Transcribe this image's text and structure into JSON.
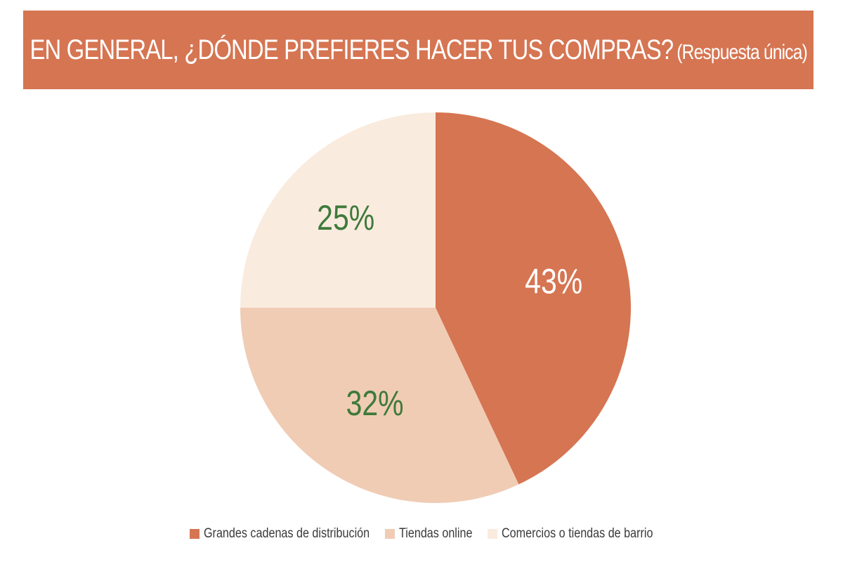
{
  "header": {
    "title": "EN GENERAL, ¿DÓNDE PREFIERES HACER TUS COMPRAS?",
    "subtitle": "(Respuesta única)",
    "background": "#D67552"
  },
  "chart_data": {
    "type": "pie",
    "title": "EN GENERAL, ¿DÓNDE PREFIERES HACER TUS COMPRAS?",
    "subtitle": "(Respuesta única)",
    "categories": [
      "Grandes cadenas de distribución",
      "Tiendas online",
      "Comercios o tiendas de barrio"
    ],
    "values": [
      43,
      32,
      25
    ],
    "labels": [
      "43%",
      "32%",
      "25%"
    ],
    "colors": [
      "#D67552",
      "#F0CCB5",
      "#FAEBDF"
    ],
    "label_colors": [
      "#ffffff",
      "#3E7A3A",
      "#3E7A3A"
    ],
    "start_angle_deg": 0,
    "direction": "clockwise",
    "legend_position": "bottom"
  }
}
